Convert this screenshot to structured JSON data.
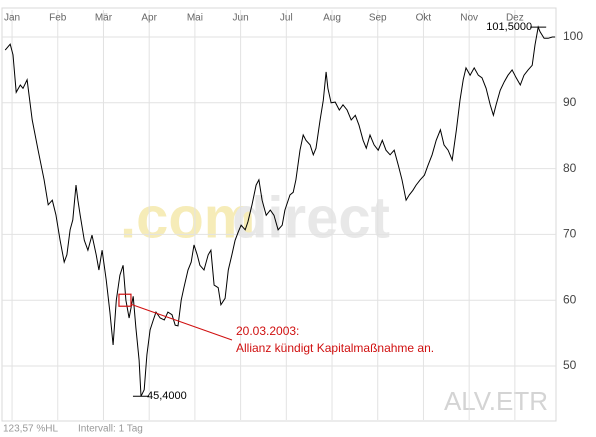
{
  "chart_data": {
    "type": "line",
    "color": "#000000",
    "grid": true,
    "x": [
      -0.15,
      -0.04,
      0.02,
      0.09,
      0.18,
      0.24,
      0.33,
      0.44,
      0.57,
      0.7,
      0.79,
      0.88,
      0.96,
      1.05,
      1.14,
      1.2,
      1.27,
      1.33,
      1.4,
      1.44,
      1.49,
      1.58,
      1.66,
      1.75,
      1.84,
      1.9,
      1.97,
      2.06,
      2.14,
      2.21,
      2.28,
      2.36,
      2.43,
      2.49,
      2.56,
      2.65,
      2.71,
      2.78,
      2.82,
      2.89,
      2.95,
      3.02,
      3.09,
      3.15,
      3.24,
      3.33,
      3.41,
      3.5,
      3.57,
      3.63,
      3.7,
      3.76,
      3.85,
      3.92,
      3.98,
      4.05,
      4.11,
      4.2,
      4.29,
      4.35,
      4.42,
      4.51,
      4.57,
      4.66,
      4.73,
      4.81,
      4.88,
      4.95,
      5.01,
      5.1,
      5.16,
      5.25,
      5.34,
      5.4,
      5.47,
      5.56,
      5.65,
      5.73,
      5.82,
      5.91,
      5.97,
      6.08,
      6.15,
      6.21,
      6.3,
      6.37,
      6.43,
      6.52,
      6.59,
      6.65,
      6.74,
      6.81,
      6.87,
      6.91,
      6.98,
      7.07,
      7.16,
      7.24,
      7.33,
      7.42,
      7.51,
      7.59,
      7.68,
      7.75,
      7.83,
      7.92,
      8.01,
      8.1,
      8.18,
      8.27,
      8.36,
      8.45,
      8.53,
      8.62,
      8.69,
      8.77,
      8.84,
      8.93,
      9.02,
      9.1,
      9.19,
      9.28,
      9.37,
      9.45,
      9.54,
      9.63,
      9.72,
      9.8,
      9.87,
      9.93,
      10.02,
      10.11,
      10.2,
      10.28,
      10.37,
      10.46,
      10.53,
      10.59,
      10.68,
      10.77,
      10.85,
      10.94,
      11.03,
      11.12,
      11.2,
      11.29,
      11.38,
      11.44,
      11.51,
      11.55,
      11.64,
      11.73,
      11.82,
      11.88
    ],
    "values": [
      98.0,
      98.9,
      97.3,
      91.6,
      92.7,
      92.2,
      93.5,
      87.4,
      82.8,
      78.3,
      74.5,
      75.2,
      73.0,
      69.1,
      65.8,
      66.9,
      70.7,
      72.2,
      77.5,
      75.2,
      72.9,
      69.1,
      67.6,
      69.9,
      66.9,
      64.6,
      67.6,
      63.1,
      58.2,
      53.2,
      60.0,
      63.8,
      65.3,
      60.0,
      57.3,
      60.6,
      55.8,
      50.9,
      45.4,
      46.4,
      51.7,
      55.5,
      57.0,
      58.2,
      57.3,
      57.0,
      58.2,
      57.8,
      56.2,
      56.1,
      60.0,
      61.9,
      64.6,
      65.8,
      68.4,
      66.9,
      65.3,
      64.6,
      66.9,
      67.6,
      62.3,
      61.9,
      59.3,
      60.3,
      64.6,
      66.9,
      69.1,
      70.4,
      71.4,
      70.7,
      71.9,
      74.5,
      77.5,
      78.3,
      75.2,
      72.9,
      73.7,
      72.9,
      70.7,
      71.4,
      73.7,
      76.0,
      76.4,
      78.3,
      82.8,
      85.1,
      84.3,
      83.6,
      82.1,
      83.1,
      87.4,
      90.4,
      94.7,
      92.2,
      90.0,
      90.1,
      88.9,
      89.7,
      88.9,
      87.4,
      88.1,
      86.6,
      84.3,
      83.1,
      85.1,
      83.6,
      82.8,
      84.3,
      82.8,
      82.1,
      82.8,
      80.5,
      78.3,
      75.2,
      76.0,
      76.7,
      77.5,
      78.3,
      79.0,
      80.5,
      82.1,
      84.3,
      85.9,
      83.6,
      82.8,
      81.3,
      85.9,
      90.4,
      93.5,
      95.3,
      94.2,
      95.3,
      94.2,
      93.8,
      92.2,
      89.7,
      88.1,
      89.7,
      91.9,
      93.2,
      94.2,
      95.0,
      93.8,
      92.7,
      94.2,
      95.0,
      95.7,
      98.8,
      101.5,
      100.8,
      99.8,
      99.8,
      100.0,
      100.0
    ],
    "xlim": [
      -0.22,
      11.9
    ],
    "xticks": [
      {
        "value": 0,
        "label": "Jan"
      },
      {
        "value": 1,
        "label": "Feb"
      },
      {
        "value": 2,
        "label": "Mär"
      },
      {
        "value": 3,
        "label": "Apr"
      },
      {
        "value": 4,
        "label": "Mai"
      },
      {
        "value": 5,
        "label": "Jun"
      },
      {
        "value": 6,
        "label": "Jul"
      },
      {
        "value": 7,
        "label": "Aug"
      },
      {
        "value": 8,
        "label": "Sep"
      },
      {
        "value": 9,
        "label": "Okt"
      },
      {
        "value": 10,
        "label": "Nov"
      },
      {
        "value": 11,
        "label": "Dez"
      }
    ],
    "ylim": [
      41.8,
      104.1
    ],
    "yticks": [
      50,
      60,
      70,
      80,
      90,
      100
    ],
    "extremes": [
      {
        "x": 11.51,
        "y": 101.5,
        "label": "101,5000"
      },
      {
        "x": 2.82,
        "y": 45.4,
        "label": "45,4000"
      }
    ],
    "event": {
      "x": 2.47,
      "y": 60.0,
      "date": "20.03.2003:",
      "text": "Allianz kündigt Kapitalmaßnahme an.",
      "color": "#d01010"
    },
    "watermark": [
      ".com",
      "direct"
    ],
    "symbol": "ALV.ETR",
    "footer": [
      "123,57 %HL",
      "Intervall: 1 Tag"
    ]
  }
}
